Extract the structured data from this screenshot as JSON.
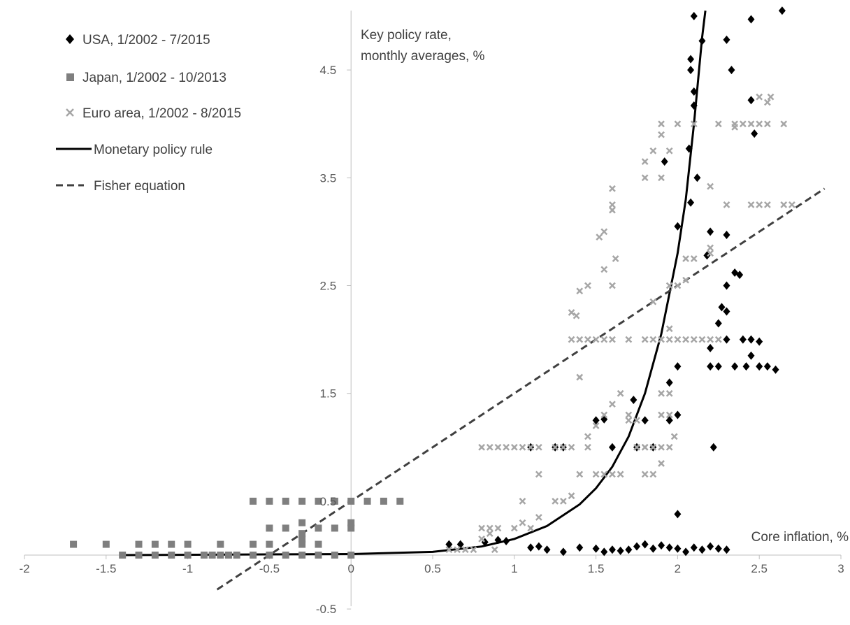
{
  "chart_data": {
    "type": "scatter",
    "xlabel": "Core inflation, %",
    "ylabel_lines": [
      "Key policy rate,",
      "monthly averages, %"
    ],
    "xlim": [
      -2,
      3
    ],
    "ylim": [
      -0.5,
      5
    ],
    "x_ticks": [
      -2,
      -1.5,
      -1,
      -0.5,
      0,
      0.5,
      1,
      1.5,
      2,
      2.5,
      3
    ],
    "x_tick_labels": [
      "-2",
      "-1.5",
      "-1",
      "-0.5",
      "0",
      "0.5",
      "1",
      "1.5",
      "2",
      "2.5",
      "3"
    ],
    "y_ticks": [
      -0.5,
      0.5,
      1.5,
      2.5,
      3.5,
      4.5
    ],
    "y_tick_labels": [
      "-0.5",
      "0.5",
      "1.5",
      "2.5",
      "3.5",
      "4.5"
    ],
    "grid": false,
    "legend_position": "top-left",
    "series": [
      {
        "name": "USA, 1/2002 - 7/2015",
        "marker": "diamond",
        "color": "#000000",
        "points": [
          [
            0.6,
            0.1
          ],
          [
            0.67,
            0.1
          ],
          [
            0.82,
            0.12
          ],
          [
            0.9,
            0.14
          ],
          [
            0.95,
            0.13
          ],
          [
            1.1,
            0.07
          ],
          [
            1.15,
            0.08
          ],
          [
            1.2,
            0.05
          ],
          [
            1.3,
            0.03
          ],
          [
            1.4,
            0.07
          ],
          [
            1.5,
            0.06
          ],
          [
            1.55,
            0.03
          ],
          [
            1.6,
            0.05
          ],
          [
            1.65,
            0.04
          ],
          [
            1.7,
            0.05
          ],
          [
            1.75,
            0.08
          ],
          [
            1.8,
            0.1
          ],
          [
            1.85,
            0.06
          ],
          [
            1.9,
            0.09
          ],
          [
            1.95,
            0.07
          ],
          [
            2.0,
            0.06
          ],
          [
            2.05,
            0.03
          ],
          [
            2.1,
            0.07
          ],
          [
            2.15,
            0.05
          ],
          [
            2.2,
            0.08
          ],
          [
            2.25,
            0.06
          ],
          [
            2.3,
            0.05
          ],
          [
            1.1,
            1.0
          ],
          [
            1.25,
            1.0
          ],
          [
            1.3,
            1.0
          ],
          [
            1.5,
            1.25
          ],
          [
            1.55,
            1.26
          ],
          [
            1.6,
            1.0
          ],
          [
            1.75,
            1.0
          ],
          [
            1.8,
            1.25
          ],
          [
            1.85,
            1.0
          ],
          [
            1.95,
            1.25
          ],
          [
            2.0,
            1.3
          ],
          [
            2.22,
            1.0
          ],
          [
            1.73,
            1.44
          ],
          [
            1.95,
            1.6
          ],
          [
            2.0,
            1.75
          ],
          [
            2.2,
            1.75
          ],
          [
            2.25,
            1.75
          ],
          [
            2.35,
            1.75
          ],
          [
            2.42,
            1.75
          ],
          [
            2.5,
            1.75
          ],
          [
            2.55,
            1.75
          ],
          [
            2.6,
            1.72
          ],
          [
            2.2,
            1.92
          ],
          [
            2.3,
            2.0
          ],
          [
            2.4,
            2.0
          ],
          [
            2.45,
            2.0
          ],
          [
            2.5,
            1.98
          ],
          [
            2.45,
            1.85
          ],
          [
            2.25,
            2.15
          ],
          [
            2.27,
            2.3
          ],
          [
            2.3,
            2.26
          ],
          [
            2.3,
            2.5
          ],
          [
            2.35,
            2.62
          ],
          [
            2.38,
            2.6
          ],
          [
            2.0,
            3.05
          ],
          [
            2.08,
            3.27
          ],
          [
            2.18,
            2.78
          ],
          [
            2.2,
            3.0
          ],
          [
            2.3,
            2.97
          ],
          [
            2.12,
            3.5
          ],
          [
            1.92,
            3.65
          ],
          [
            2.07,
            3.77
          ],
          [
            2.47,
            3.91
          ],
          [
            2.45,
            4.22
          ],
          [
            2.1,
            4.17
          ],
          [
            2.1,
            4.3
          ],
          [
            2.08,
            4.5
          ],
          [
            2.08,
            4.6
          ],
          [
            2.33,
            4.5
          ],
          [
            2.15,
            4.77
          ],
          [
            2.3,
            4.78
          ],
          [
            2.45,
            4.97
          ],
          [
            2.1,
            5.0
          ],
          [
            2.64,
            5.05
          ],
          [
            2.0,
            0.38
          ]
        ]
      },
      {
        "name": "Japan, 1/2002 - 10/2013",
        "marker": "square",
        "color": "#7f7f7f",
        "points": [
          [
            -1.7,
            0.1
          ],
          [
            -1.5,
            0.1
          ],
          [
            -1.3,
            0.1
          ],
          [
            -1.2,
            0.1
          ],
          [
            -1.1,
            0.1
          ],
          [
            -1.0,
            0.1
          ],
          [
            -0.8,
            0.1
          ],
          [
            -0.6,
            0.1
          ],
          [
            -0.5,
            0.1
          ],
          [
            -0.3,
            0.1
          ],
          [
            -0.2,
            0.1
          ],
          [
            -1.4,
            0.0
          ],
          [
            -1.3,
            0.0
          ],
          [
            -1.2,
            0.0
          ],
          [
            -1.1,
            0.0
          ],
          [
            -1.0,
            0.0
          ],
          [
            -0.9,
            0.0
          ],
          [
            -0.85,
            0.0
          ],
          [
            -0.8,
            0.0
          ],
          [
            -0.75,
            0.0
          ],
          [
            -0.7,
            0.0
          ],
          [
            -0.6,
            0.0
          ],
          [
            -0.5,
            0.0
          ],
          [
            -0.4,
            0.0
          ],
          [
            -0.3,
            0.0
          ],
          [
            -0.2,
            0.0
          ],
          [
            -0.1,
            0.0
          ],
          [
            0.0,
            0.0
          ],
          [
            -0.6,
            0.5
          ],
          [
            -0.5,
            0.5
          ],
          [
            -0.4,
            0.5
          ],
          [
            -0.3,
            0.5
          ],
          [
            -0.2,
            0.5
          ],
          [
            -0.1,
            0.5
          ],
          [
            0.0,
            0.5
          ],
          [
            0.1,
            0.5
          ],
          [
            0.2,
            0.5
          ],
          [
            0.3,
            0.5
          ],
          [
            -0.5,
            0.25
          ],
          [
            -0.4,
            0.25
          ],
          [
            -0.3,
            0.3
          ],
          [
            -0.2,
            0.25
          ],
          [
            0.0,
            0.3
          ],
          [
            -0.1,
            0.25
          ],
          [
            0.0,
            0.25
          ],
          [
            -0.3,
            0.15
          ],
          [
            -0.3,
            0.2
          ]
        ]
      },
      {
        "name": "Euro area, 1/2002 - 8/2015",
        "marker": "x",
        "color": "#a6a6a6",
        "points": [
          [
            0.6,
            0.05
          ],
          [
            0.65,
            0.05
          ],
          [
            0.7,
            0.05
          ],
          [
            0.75,
            0.05
          ],
          [
            0.88,
            0.05
          ],
          [
            0.8,
            0.25
          ],
          [
            0.85,
            0.25
          ],
          [
            0.9,
            0.25
          ],
          [
            0.8,
            0.15
          ],
          [
            0.85,
            0.2
          ],
          [
            1.0,
            0.25
          ],
          [
            1.05,
            0.3
          ],
          [
            1.15,
            0.35
          ],
          [
            1.1,
            0.25
          ],
          [
            1.25,
            0.5
          ],
          [
            1.3,
            0.5
          ],
          [
            1.35,
            0.55
          ],
          [
            1.05,
            0.5
          ],
          [
            0.8,
            1.0
          ],
          [
            0.85,
            1.0
          ],
          [
            0.9,
            1.0
          ],
          [
            0.95,
            1.0
          ],
          [
            1.0,
            1.0
          ],
          [
            1.05,
            1.0
          ],
          [
            1.1,
            1.0
          ],
          [
            1.15,
            1.0
          ],
          [
            1.25,
            1.0
          ],
          [
            1.3,
            1.0
          ],
          [
            1.35,
            1.0
          ],
          [
            1.45,
            1.0
          ],
          [
            1.75,
            1.0
          ],
          [
            1.8,
            1.0
          ],
          [
            1.85,
            1.0
          ],
          [
            1.9,
            1.0
          ],
          [
            1.95,
            1.0
          ],
          [
            1.98,
            1.1
          ],
          [
            1.15,
            0.75
          ],
          [
            1.4,
            0.75
          ],
          [
            1.5,
            0.75
          ],
          [
            1.55,
            0.75
          ],
          [
            1.6,
            0.75
          ],
          [
            1.65,
            0.75
          ],
          [
            1.8,
            0.75
          ],
          [
            1.9,
            0.85
          ],
          [
            1.85,
            0.75
          ],
          [
            1.45,
            1.1
          ],
          [
            1.5,
            1.2
          ],
          [
            1.55,
            1.3
          ],
          [
            1.65,
            1.5
          ],
          [
            1.7,
            1.25
          ],
          [
            1.7,
            1.3
          ],
          [
            1.75,
            1.25
          ],
          [
            1.8,
            1.0
          ],
          [
            1.9,
            1.3
          ],
          [
            1.95,
            1.3
          ],
          [
            1.9,
            1.5
          ],
          [
            1.95,
            1.5
          ],
          [
            1.6,
            1.4
          ],
          [
            1.4,
            1.65
          ],
          [
            1.35,
            2.0
          ],
          [
            1.4,
            2.0
          ],
          [
            1.45,
            2.0
          ],
          [
            1.5,
            2.0
          ],
          [
            1.55,
            2.0
          ],
          [
            1.6,
            2.0
          ],
          [
            1.7,
            2.0
          ],
          [
            1.8,
            2.0
          ],
          [
            1.85,
            2.0
          ],
          [
            1.9,
            2.0
          ],
          [
            1.95,
            2.0
          ],
          [
            2.0,
            2.0
          ],
          [
            2.05,
            2.0
          ],
          [
            2.1,
            2.0
          ],
          [
            2.15,
            2.0
          ],
          [
            2.2,
            2.0
          ],
          [
            2.25,
            2.0
          ],
          [
            1.95,
            2.1
          ],
          [
            1.35,
            2.25
          ],
          [
            1.38,
            2.22
          ],
          [
            1.4,
            2.45
          ],
          [
            1.45,
            2.5
          ],
          [
            1.55,
            2.65
          ],
          [
            1.6,
            2.5
          ],
          [
            1.62,
            2.75
          ],
          [
            1.52,
            2.95
          ],
          [
            1.55,
            3.0
          ],
          [
            1.6,
            3.2
          ],
          [
            1.6,
            3.25
          ],
          [
            1.6,
            3.4
          ],
          [
            1.85,
            2.35
          ],
          [
            1.95,
            2.5
          ],
          [
            2.0,
            2.5
          ],
          [
            2.05,
            2.55
          ],
          [
            2.1,
            2.75
          ],
          [
            2.05,
            2.75
          ],
          [
            2.2,
            2.8
          ],
          [
            2.2,
            2.85
          ],
          [
            1.8,
            3.5
          ],
          [
            1.85,
            3.75
          ],
          [
            1.9,
            3.5
          ],
          [
            1.95,
            3.75
          ],
          [
            1.8,
            3.65
          ],
          [
            1.9,
            3.9
          ],
          [
            1.9,
            4.0
          ],
          [
            2.0,
            4.0
          ],
          [
            2.1,
            4.0
          ],
          [
            2.2,
            3.42
          ],
          [
            2.3,
            3.25
          ],
          [
            2.45,
            3.25
          ],
          [
            2.5,
            3.25
          ],
          [
            2.55,
            3.25
          ],
          [
            2.65,
            3.25
          ],
          [
            2.7,
            3.25
          ],
          [
            2.25,
            4.0
          ],
          [
            2.35,
            4.0
          ],
          [
            2.4,
            4.0
          ],
          [
            2.45,
            4.0
          ],
          [
            2.5,
            4.0
          ],
          [
            2.55,
            4.0
          ],
          [
            2.65,
            4.0
          ],
          [
            2.35,
            3.97
          ],
          [
            2.5,
            4.25
          ],
          [
            2.55,
            4.2
          ],
          [
            2.57,
            4.25
          ]
        ]
      },
      {
        "name": "Monetary policy rule",
        "marker": "line",
        "color": "#000000",
        "style": "solid",
        "points": [
          [
            -1.4,
            0.0
          ],
          [
            0.0,
            0.01
          ],
          [
            0.5,
            0.03
          ],
          [
            0.8,
            0.08
          ],
          [
            1.0,
            0.15
          ],
          [
            1.2,
            0.27
          ],
          [
            1.4,
            0.47
          ],
          [
            1.5,
            0.62
          ],
          [
            1.6,
            0.82
          ],
          [
            1.7,
            1.1
          ],
          [
            1.8,
            1.5
          ],
          [
            1.9,
            2.05
          ],
          [
            2.0,
            2.8
          ],
          [
            2.05,
            3.3
          ],
          [
            2.1,
            4.0
          ],
          [
            2.15,
            4.8
          ],
          [
            2.17,
            5.05
          ]
        ]
      },
      {
        "name": "Fisher equation",
        "marker": "line",
        "color": "#404040",
        "style": "dashed",
        "points": [
          [
            -0.82,
            -0.32
          ],
          [
            2.9,
            3.4
          ]
        ]
      }
    ]
  },
  "legend": {
    "usa": "USA, 1/2002 - 7/2015",
    "japan": "Japan, 1/2002 - 10/2013",
    "euro": "Euro area, 1/2002 - 8/2015",
    "rule": "Monetary policy rule",
    "fisher": "Fisher equation"
  }
}
